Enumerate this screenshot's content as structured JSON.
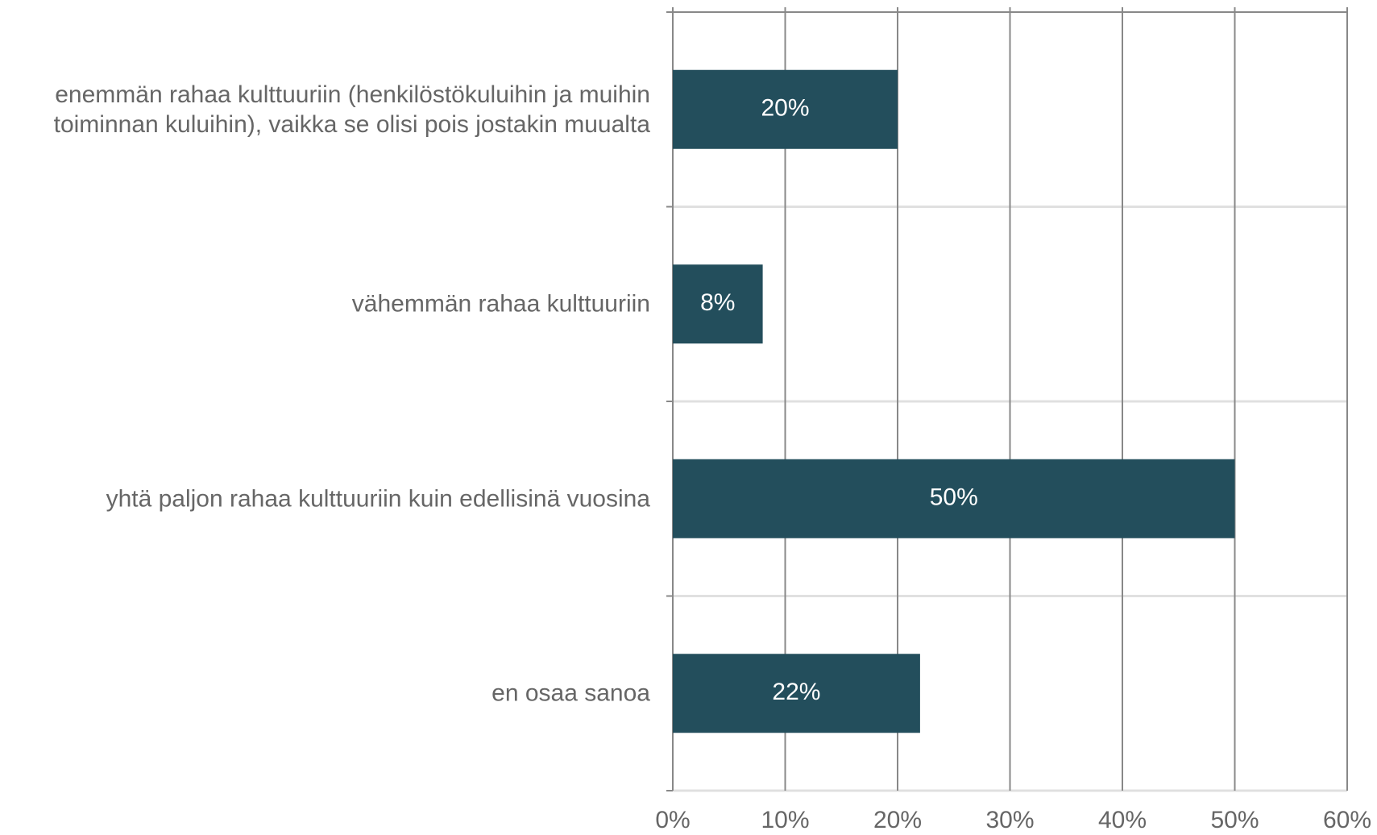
{
  "chart_data": {
    "type": "bar",
    "orientation": "horizontal",
    "categories": [
      "enemmän rahaa kulttuuriin (henkilöstökuluihin ja muihin\ntoiminnan kuluihin), vaikka se olisi pois jostakin muualta",
      "vähemmän rahaa kulttuuriin",
      "yhtä paljon rahaa kulttuuriin kuin edellisinä vuosina",
      "en osaa sanoa"
    ],
    "values": [
      20,
      8,
      50,
      22
    ],
    "value_labels": [
      "20%",
      "8%",
      "50%",
      "22%"
    ],
    "color": "#234e5c",
    "xlim": [
      0,
      60
    ],
    "xticks": [
      {
        "value": 0,
        "label": "0%"
      },
      {
        "value": 10,
        "label": "10%"
      },
      {
        "value": 20,
        "label": "20%"
      },
      {
        "value": 30,
        "label": "30%"
      },
      {
        "value": 40,
        "label": "40%"
      },
      {
        "value": 50,
        "label": "50%"
      },
      {
        "value": 60,
        "label": "60%"
      }
    ],
    "grid": true
  }
}
